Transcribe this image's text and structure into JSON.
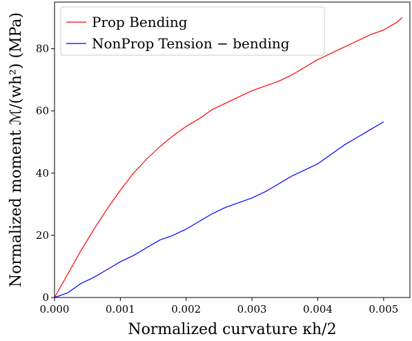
{
  "chart_data": {
    "type": "line",
    "xlabel": "Normalized curvature κh/2",
    "ylabel": "Normalized moment ℳ/(wh²) (MPa)",
    "xlim": [
      0,
      0.0054
    ],
    "ylim": [
      0,
      95
    ],
    "x_ticks": [
      0.0,
      0.001,
      0.002,
      0.003,
      0.004,
      0.005
    ],
    "x_tick_labels": [
      "0.000",
      "0.001",
      "0.002",
      "0.003",
      "0.004",
      "0.005"
    ],
    "y_ticks": [
      0,
      20,
      40,
      60,
      80
    ],
    "y_tick_labels": [
      "0",
      "20",
      "40",
      "60",
      "80"
    ],
    "grid": false,
    "legend_position": "top-left",
    "series": [
      {
        "name": "Prop Bending",
        "color": "#ff0000",
        "x": [
          0,
          0.0002,
          0.0004,
          0.0006,
          0.0008,
          0.001,
          0.0012,
          0.0014,
          0.0016,
          0.0018,
          0.002,
          0.0022,
          0.0024,
          0.0026,
          0.0028,
          0.003,
          0.0032,
          0.0034,
          0.0036,
          0.0038,
          0.004,
          0.0042,
          0.0044,
          0.0046,
          0.0048,
          0.005,
          0.0052,
          0.00528
        ],
        "y": [
          0,
          7.5,
          15.0,
          22.0,
          28.5,
          34.5,
          40.0,
          44.5,
          48.5,
          52.0,
          55.0,
          57.5,
          60.5,
          62.5,
          64.5,
          66.5,
          68.0,
          69.5,
          71.5,
          74.0,
          76.5,
          78.5,
          80.5,
          82.5,
          84.5,
          86.0,
          88.5,
          90.0
        ]
      },
      {
        "name": "NonProp Tension − bending",
        "color": "#0000ff",
        "x": [
          0,
          0.0002,
          0.0004,
          0.0006,
          0.0008,
          0.001,
          0.0012,
          0.0014,
          0.0016,
          0.0018,
          0.002,
          0.0022,
          0.0024,
          0.0026,
          0.0028,
          0.003,
          0.0032,
          0.0034,
          0.0036,
          0.0038,
          0.004,
          0.0042,
          0.0044,
          0.0046,
          0.0048,
          0.005
        ],
        "y": [
          0,
          1.5,
          4.5,
          6.5,
          9.0,
          11.5,
          13.5,
          16.0,
          18.5,
          20.0,
          22.0,
          24.5,
          27.0,
          29.0,
          30.5,
          32.0,
          34.0,
          36.5,
          39.0,
          41.0,
          43.0,
          46.0,
          49.0,
          51.5,
          54.0,
          56.5
        ]
      }
    ]
  }
}
